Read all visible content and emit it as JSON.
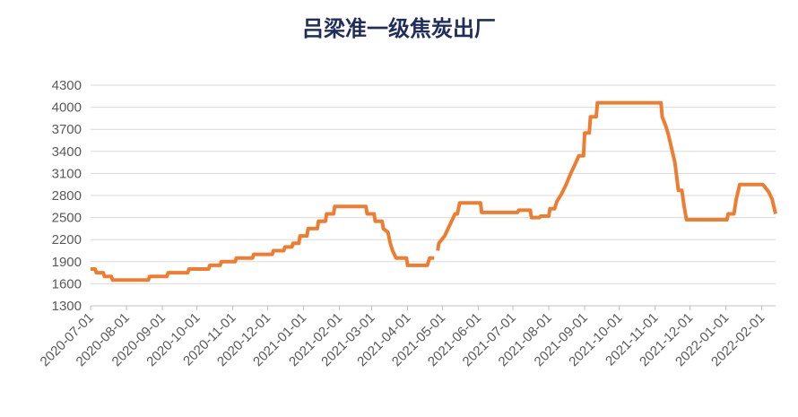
{
  "chart_data": {
    "type": "line",
    "title": "吕梁准一级焦炭出厂",
    "x": [
      "2020-07-01",
      "2020-07-05",
      "2020-07-06",
      "2020-07-12",
      "2020-07-13",
      "2020-07-19",
      "2020-07-20",
      "2020-08-20",
      "2020-08-21",
      "2020-09-05",
      "2020-09-06",
      "2020-09-23",
      "2020-09-24",
      "2020-10-11",
      "2020-10-12",
      "2020-10-21",
      "2020-10-22",
      "2020-11-03",
      "2020-11-04",
      "2020-11-18",
      "2020-11-19",
      "2020-12-05",
      "2020-12-06",
      "2020-12-15",
      "2020-12-16",
      "2020-12-22",
      "2020-12-23",
      "2020-12-28",
      "2020-12-29",
      "2021-01-04",
      "2021-01-05",
      "2021-01-13",
      "2021-01-14",
      "2021-01-20",
      "2021-01-21",
      "2021-01-27",
      "2021-01-28",
      "2021-02-24",
      "2021-02-25",
      "2021-03-03",
      "2021-03-04",
      "2021-03-10",
      "2021-03-11",
      "2021-03-15",
      "2021-03-17",
      "2021-03-19",
      "2021-03-22",
      "2021-03-31",
      "2021-04-01",
      "2021-04-18",
      "2021-04-20",
      "2021-04-24",
      "2021-04-25",
      "2021-04-27",
      "2021-04-28",
      "2021-05-03",
      "2021-05-06",
      "2021-05-09",
      "2021-05-12",
      "2021-05-14",
      "2021-05-16",
      "2021-06-03",
      "2021-06-04",
      "2021-07-05",
      "2021-07-06",
      "2021-07-16",
      "2021-07-17",
      "2021-07-24",
      "2021-07-25",
      "2021-08-01",
      "2021-08-02",
      "2021-08-06",
      "2021-08-08",
      "2021-08-12",
      "2021-08-16",
      "2021-08-20",
      "2021-08-23",
      "2021-08-27",
      "2021-08-31",
      "2021-09-01",
      "2021-09-05",
      "2021-09-06",
      "2021-09-11",
      "2021-09-12",
      "2021-11-06",
      "2021-11-07",
      "2021-11-10",
      "2021-11-12",
      "2021-11-15",
      "2021-11-18",
      "2021-11-21",
      "2021-11-24",
      "2021-11-26",
      "2021-11-28",
      "2022-01-02",
      "2022-01-03",
      "2022-01-08",
      "2022-01-10",
      "2022-01-13",
      "2022-02-02",
      "2022-02-07",
      "2022-02-10",
      "2022-02-13"
    ],
    "series": [
      {
        "color": "#ed7d31",
        "values": [
          1800,
          1800,
          1750,
          1750,
          1700,
          1700,
          1650,
          1650,
          1700,
          1700,
          1750,
          1750,
          1800,
          1800,
          1850,
          1850,
          1900,
          1900,
          1950,
          1950,
          2000,
          2000,
          2050,
          2050,
          2100,
          2100,
          2150,
          2150,
          2250,
          2250,
          2350,
          2350,
          2450,
          2450,
          2550,
          2550,
          2650,
          2650,
          2550,
          2550,
          2450,
          2450,
          2350,
          2300,
          2150,
          2050,
          1950,
          1950,
          1850,
          1850,
          1950,
          1950,
          null,
          2050,
          2150,
          2250,
          2350,
          2450,
          2550,
          2550,
          2700,
          2700,
          2570,
          2570,
          2600,
          2600,
          2500,
          2500,
          2520,
          2520,
          2620,
          2620,
          2720,
          2820,
          2950,
          3100,
          3200,
          3340,
          3340,
          3650,
          3650,
          3870,
          3870,
          4060,
          4060,
          3870,
          3750,
          3650,
          3450,
          3250,
          2870,
          2870,
          2650,
          2470,
          2470,
          2550,
          2550,
          2750,
          2950,
          2950,
          2850,
          2750,
          2550
        ]
      }
    ],
    "xlim": [
      "2020-07-01",
      "2022-02-13"
    ],
    "xticks": [
      "2020-07-01",
      "2020-08-01",
      "2020-09-01",
      "2020-10-01",
      "2020-11-01",
      "2020-12-01",
      "2021-01-01",
      "2021-02-01",
      "2021-03-01",
      "2021-04-01",
      "2021-05-01",
      "2021-06-01",
      "2021-07-01",
      "2021-08-01",
      "2021-09-01",
      "2021-10-01",
      "2021-11-01",
      "2021-12-01",
      "2022-01-01",
      "2022-02-01"
    ],
    "ylim": [
      1300,
      4300
    ],
    "yticks": [
      1300,
      1600,
      1900,
      2200,
      2500,
      2800,
      3100,
      3400,
      3700,
      4000,
      4300
    ],
    "grid": true
  }
}
